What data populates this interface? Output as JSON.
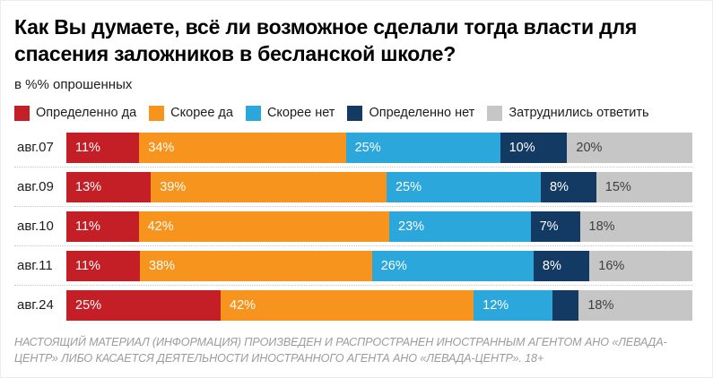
{
  "title": "Как Вы думаете, всё ли возможное сделали тогда власти для спасения заложников в бесланской школе?",
  "subtitle": "в %% опрошенных",
  "footer": "НАСТОЯЩИЙ МАТЕРИАЛ (ИНФОРМАЦИЯ) ПРОИЗВЕДЕН И РАСПРОСТРАНЕН ИНОСТРАННЫМ АГЕНТОМ АНО «ЛЕВАДА-ЦЕНТР» ЛИБО КАСАЕТСЯ ДЕЯТЕЛЬНОСТИ ИНОСТРАННОГО АГЕНТА АНО «ЛЕВАДА-ЦЕНТР». 18+",
  "colors": {
    "definitely_yes": "#c41f26",
    "rather_yes": "#f7941d",
    "rather_no": "#2ba7db",
    "definitely_no": "#123a63",
    "no_answer": "#c6c6c6",
    "label_on_gray": "#3f3f3f",
    "separator": "#c9c9c9"
  },
  "chart_data": {
    "type": "bar",
    "orientation": "horizontal-stacked",
    "title": "Как Вы думаете, всё ли возможное сделали тогда власти для спасения заложников в бесланской школе?",
    "xlabel": "",
    "ylabel": "",
    "xlim": [
      0,
      100
    ],
    "value_unit": "%",
    "grid": false,
    "legend_position": "top",
    "categories": [
      "авг.07",
      "авг.09",
      "авг.10",
      "авг.11",
      "авг.24"
    ],
    "series": [
      {
        "name": "Определенно да",
        "color": "#c41f26",
        "values": [
          11,
          13,
          11,
          11,
          25
        ],
        "labels": [
          "11%",
          "13%",
          "11%",
          "11%",
          "25%"
        ]
      },
      {
        "name": "Скорее да",
        "color": "#f7941d",
        "values": [
          34,
          39,
          42,
          38,
          42
        ],
        "labels": [
          "34%",
          "39%",
          "42%",
          "38%",
          "42%"
        ]
      },
      {
        "name": "Скорее нет",
        "color": "#2ba7db",
        "values": [
          25,
          25,
          23,
          26,
          12
        ],
        "labels": [
          "25%",
          "25%",
          "23%",
          "26%",
          "12%"
        ]
      },
      {
        "name": "Определенно нет",
        "color": "#123a63",
        "values": [
          10,
          8,
          7,
          8,
          3
        ],
        "labels": [
          "10%",
          "8%",
          "7%",
          "8%",
          ""
        ]
      },
      {
        "name": "Затруднились ответить",
        "color": "#c6c6c6",
        "label_color": "#3f3f3f",
        "values": [
          20,
          15,
          18,
          16,
          18
        ],
        "labels": [
          "20%",
          "15%",
          "18%",
          "16%",
          "18%"
        ]
      }
    ]
  }
}
